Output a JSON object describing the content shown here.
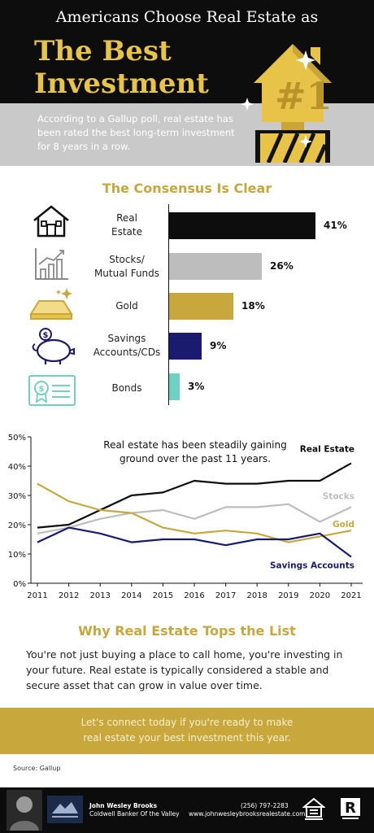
{
  "header": {
    "top_line": "Americans Choose Real Estate as",
    "big_line_1": "The Best",
    "big_line_2": "Investment",
    "badge": "#1",
    "description": "According to a Gallup poll, real estate has been rated the best long-term investment for 8 years in a row."
  },
  "colors": {
    "gold": "#c8a73d",
    "black": "#0d0d0d",
    "gray": "#bdbdbd",
    "navy": "#1a1a6e",
    "teal": "#6fd1c1"
  },
  "bars_section": {
    "title": "The Consensus Is Clear",
    "items": [
      {
        "icon": "house-icon",
        "label_line1": "Real",
        "label_line2": "Estate",
        "value": 41,
        "value_label": "41%",
        "color": "#0d0d0d"
      },
      {
        "icon": "stock-chart-icon",
        "label_line1": "Stocks/",
        "label_line2": "Mutual Funds",
        "value": 26,
        "value_label": "26%",
        "color": "#bdbdbd"
      },
      {
        "icon": "gold-bar-icon",
        "label_line1": "Gold",
        "label_line2": "",
        "value": 18,
        "value_label": "18%",
        "color": "#c8a73d"
      },
      {
        "icon": "piggy-bank-icon",
        "label_line1": "Savings",
        "label_line2": "Accounts/CDs",
        "value": 9,
        "value_label": "9%",
        "color": "#1a1a6e"
      },
      {
        "icon": "bond-certificate-icon",
        "label_line1": "Bonds",
        "label_line2": "",
        "value": 3,
        "value_label": "3%",
        "color": "#6fd1c1"
      }
    ]
  },
  "chart_data": [
    {
      "type": "bar",
      "orientation": "horizontal",
      "title": "The Consensus Is Clear",
      "categories": [
        "Real Estate",
        "Stocks/Mutual Funds",
        "Gold",
        "Savings Accounts/CDs",
        "Bonds"
      ],
      "values": [
        41,
        26,
        18,
        9,
        3
      ],
      "unit": "%"
    },
    {
      "type": "line",
      "annotation_line1": "Real estate has been steadily gaining",
      "annotation_line2": "ground over the past 11 years.",
      "x": [
        2011,
        2012,
        2013,
        2014,
        2015,
        2016,
        2017,
        2018,
        2019,
        2020,
        2021
      ],
      "ylim": [
        0,
        50
      ],
      "yticks": [
        "0%",
        "10%",
        "20%",
        "30%",
        "40%",
        "50%"
      ],
      "grid": false,
      "series": [
        {
          "name": "Real Estate",
          "color": "#0d0d0d",
          "values": [
            19,
            20,
            25,
            30,
            31,
            35,
            34,
            34,
            35,
            35,
            41
          ]
        },
        {
          "name": "Stocks",
          "color": "#bdbdbd",
          "values": [
            17,
            19,
            22,
            24,
            25,
            22,
            26,
            26,
            27,
            21,
            26
          ]
        },
        {
          "name": "Gold",
          "color": "#c8a73d",
          "values": [
            34,
            28,
            25,
            24,
            19,
            17,
            18,
            17,
            14,
            16,
            18
          ]
        },
        {
          "name": "Savings Accounts",
          "color": "#1a1a6e",
          "values": [
            14,
            19,
            17,
            14,
            15,
            15,
            13,
            15,
            15,
            17,
            9
          ]
        }
      ]
    }
  ],
  "why_section": {
    "title": "Why Real Estate Tops the List",
    "body": "You're not just buying a place to call home, you're investing in your future. Real estate is typically considered a stable and secure asset that can grow in value over time."
  },
  "cta": {
    "line1": "Let's connect today if you're ready to make",
    "line2": "real estate your best investment this year."
  },
  "source": "Source: Gallup",
  "footer": {
    "agent_name": "John Wesley Brooks",
    "agent_company": "Coldwell Banker Of the Valley",
    "phone": "(256) 797-2283",
    "website": "www.johnwesleybrooksrealestate.com",
    "icons": [
      "agent-photo",
      "company-logo",
      "equal-housing-icon",
      "realtor-icon"
    ],
    "realtor_letter": "R"
  }
}
